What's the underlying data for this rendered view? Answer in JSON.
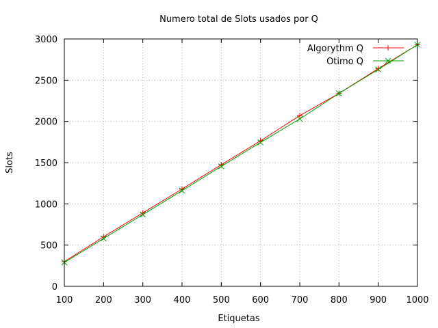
{
  "chart_data": {
    "type": "line",
    "title": "Numero total de Slots usados por Q",
    "xlabel": "Etiquetas",
    "ylabel": "Slots",
    "xlim": [
      100,
      1000
    ],
    "ylim": [
      0,
      3000
    ],
    "xticks": [
      100,
      200,
      300,
      400,
      500,
      600,
      700,
      800,
      900,
      1000
    ],
    "yticks": [
      0,
      500,
      1000,
      1500,
      2000,
      2500,
      3000
    ],
    "grid": true,
    "legend_position": "top-right",
    "series": [
      {
        "name": "Algorythm Q",
        "color": "#ff0000",
        "marker": "plus",
        "x": [
          100,
          200,
          300,
          400,
          500,
          600,
          700,
          800,
          900,
          1000
        ],
        "y": [
          300,
          600,
          890,
          1180,
          1475,
          1765,
          2070,
          2340,
          2640,
          2930
        ]
      },
      {
        "name": "Otimo Q",
        "color": "#00a000",
        "marker": "cross",
        "x": [
          100,
          200,
          300,
          400,
          500,
          600,
          700,
          800,
          900,
          1000
        ],
        "y": [
          290,
          580,
          870,
          1160,
          1455,
          1745,
          2030,
          2340,
          2630,
          2930
        ]
      }
    ]
  }
}
